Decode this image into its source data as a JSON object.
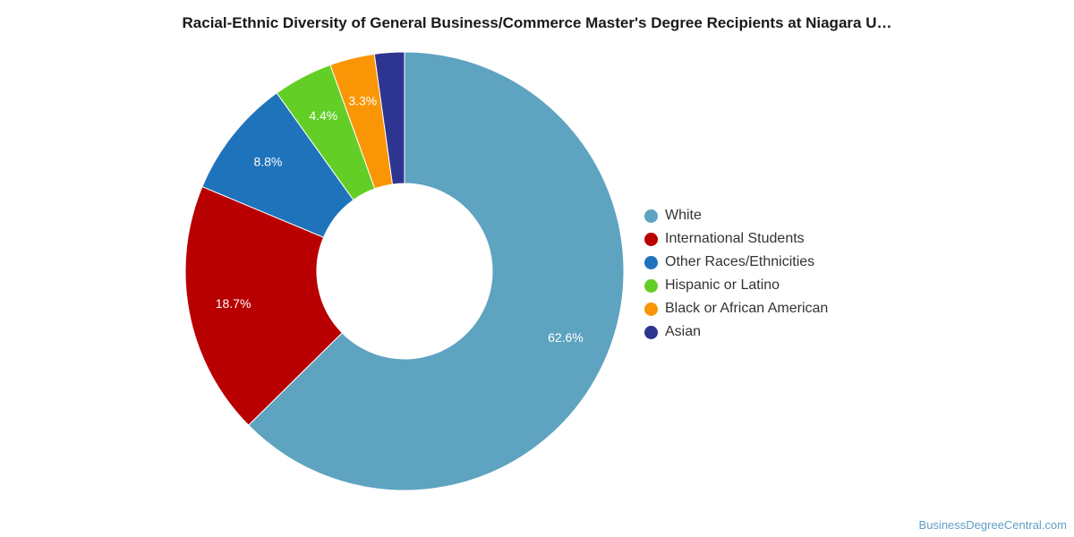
{
  "chart_data": {
    "type": "pie",
    "donut": true,
    "title": "Racial-Ethnic Diversity of General Business/Commerce Master's Degree Recipients at Niagara U…",
    "legend_position": "right",
    "slices": [
      {
        "label": "White",
        "value": 62.6,
        "value_label": "62.6%",
        "color": "#5ea3c0"
      },
      {
        "label": "International Students",
        "value": 18.7,
        "value_label": "18.7%",
        "color": "#b80000"
      },
      {
        "label": "Other Races/Ethnicities",
        "value": 8.8,
        "value_label": "8.8%",
        "color": "#1f73ba"
      },
      {
        "label": "Hispanic or Latino",
        "value": 4.4,
        "value_label": "4.4%",
        "color": "#63cf26"
      },
      {
        "label": "Black or African American",
        "value": 3.3,
        "value_label": "3.3%",
        "color": "#fa9605"
      },
      {
        "label": "Asian",
        "value": 2.2,
        "value_label": "",
        "color": "#2e3590"
      }
    ]
  },
  "source": "BusinessDegreeCentral.com"
}
